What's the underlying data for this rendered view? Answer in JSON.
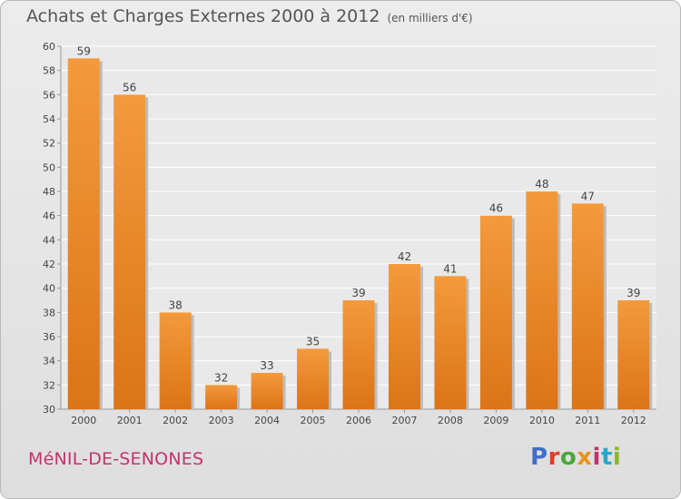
{
  "header": {
    "title": "Achats et Charges Externes 2000 à 2012",
    "unit_note": "(en milliers d'€)"
  },
  "footer": {
    "commune": "MéNIL-DE-SENONES",
    "logo_letters": [
      {
        "char": "P",
        "color": "#3f6fc7"
      },
      {
        "char": "r",
        "color": "#e23c2a"
      },
      {
        "char": "o",
        "color": "#49a83a"
      },
      {
        "char": "x",
        "color": "#e8931a"
      },
      {
        "char": "i",
        "color": "#c2336f"
      },
      {
        "char": "t",
        "color": "#2aa6c9"
      },
      {
        "char": "i",
        "color": "#8ab62a"
      }
    ]
  },
  "chart_data": {
    "type": "bar",
    "categories": [
      "2000",
      "2001",
      "2002",
      "2003",
      "2004",
      "2005",
      "2006",
      "2007",
      "2008",
      "2009",
      "2010",
      "2011",
      "2012"
    ],
    "values": [
      59,
      56,
      38,
      32,
      33,
      35,
      39,
      42,
      41,
      46,
      48,
      47,
      39
    ],
    "ylim": [
      30,
      60
    ],
    "yticks": [
      30,
      32,
      34,
      36,
      38,
      40,
      42,
      44,
      46,
      48,
      50,
      52,
      54,
      56,
      58,
      60
    ],
    "grid": true,
    "bar_color": "#f39a3c",
    "bar_color_dark": "#dc7418",
    "xlabel": "",
    "ylabel": ""
  }
}
